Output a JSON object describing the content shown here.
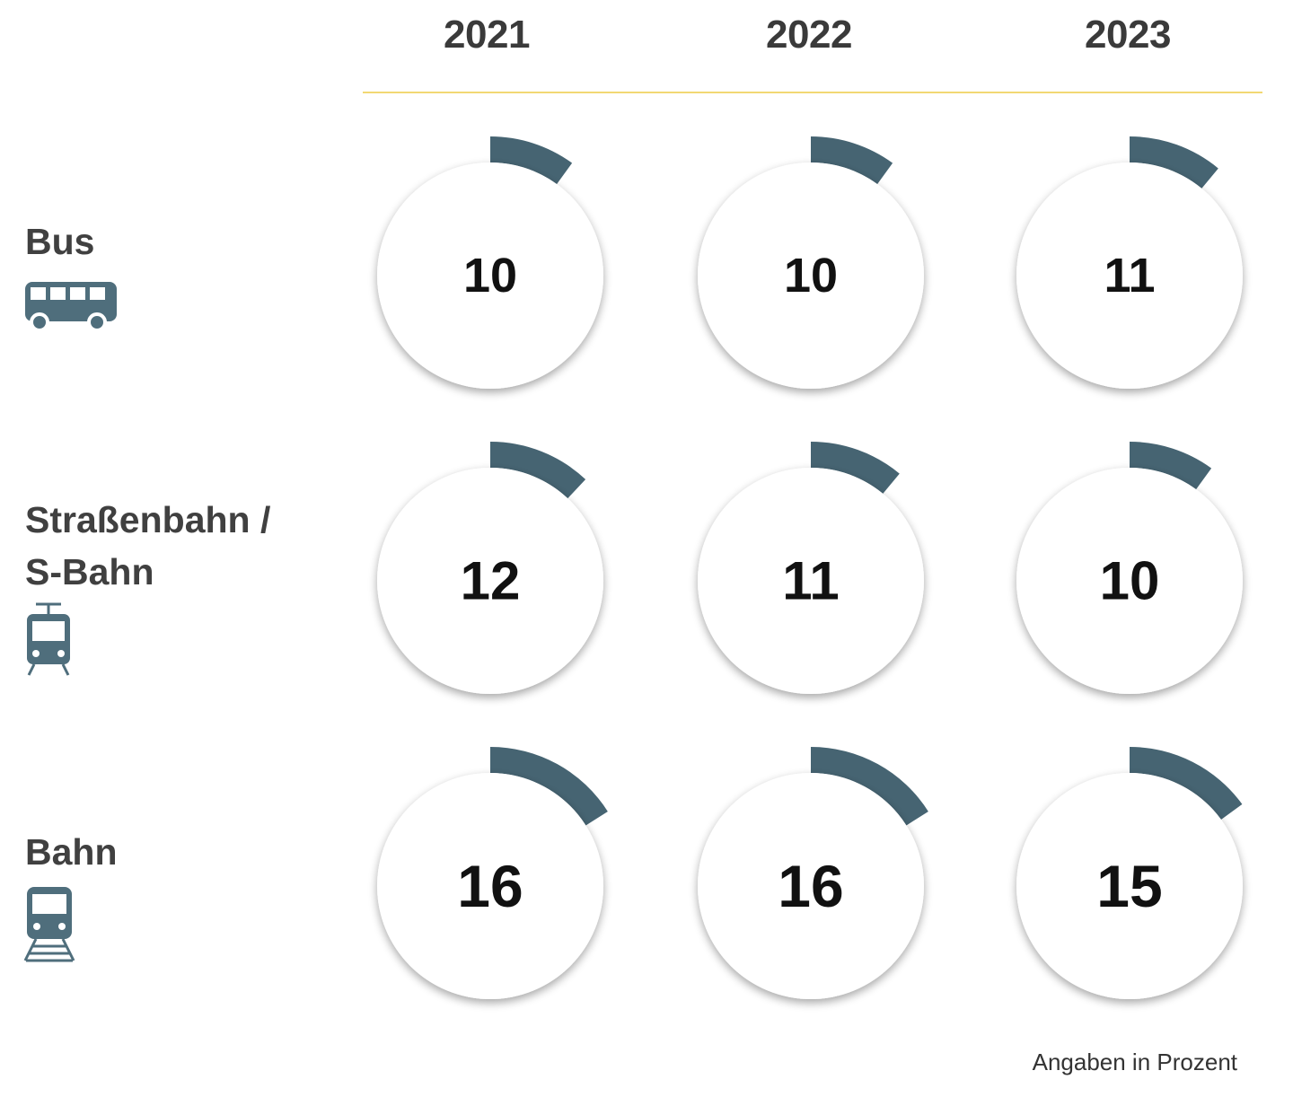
{
  "chart_data": {
    "type": "donut-grid",
    "columns": [
      "2021",
      "2022",
      "2023"
    ],
    "rows": [
      {
        "label": "Bus",
        "icon": "bus-icon",
        "values": [
          10,
          10,
          11
        ]
      },
      {
        "label": "Straßenbahn / S-Bahn",
        "label_lines": [
          "Straßenbahn /",
          "S-Bahn"
        ],
        "icon": "tram-icon",
        "values": [
          12,
          11,
          10
        ]
      },
      {
        "label": "Bahn",
        "icon": "train-icon",
        "values": [
          16,
          16,
          15
        ]
      }
    ],
    "max_value": 100,
    "note": "Angaben in Prozent",
    "colors": {
      "arc": "#466472",
      "rule": "#f2d873",
      "icon": "#4f6e7c",
      "circle": "#ffffff"
    }
  }
}
